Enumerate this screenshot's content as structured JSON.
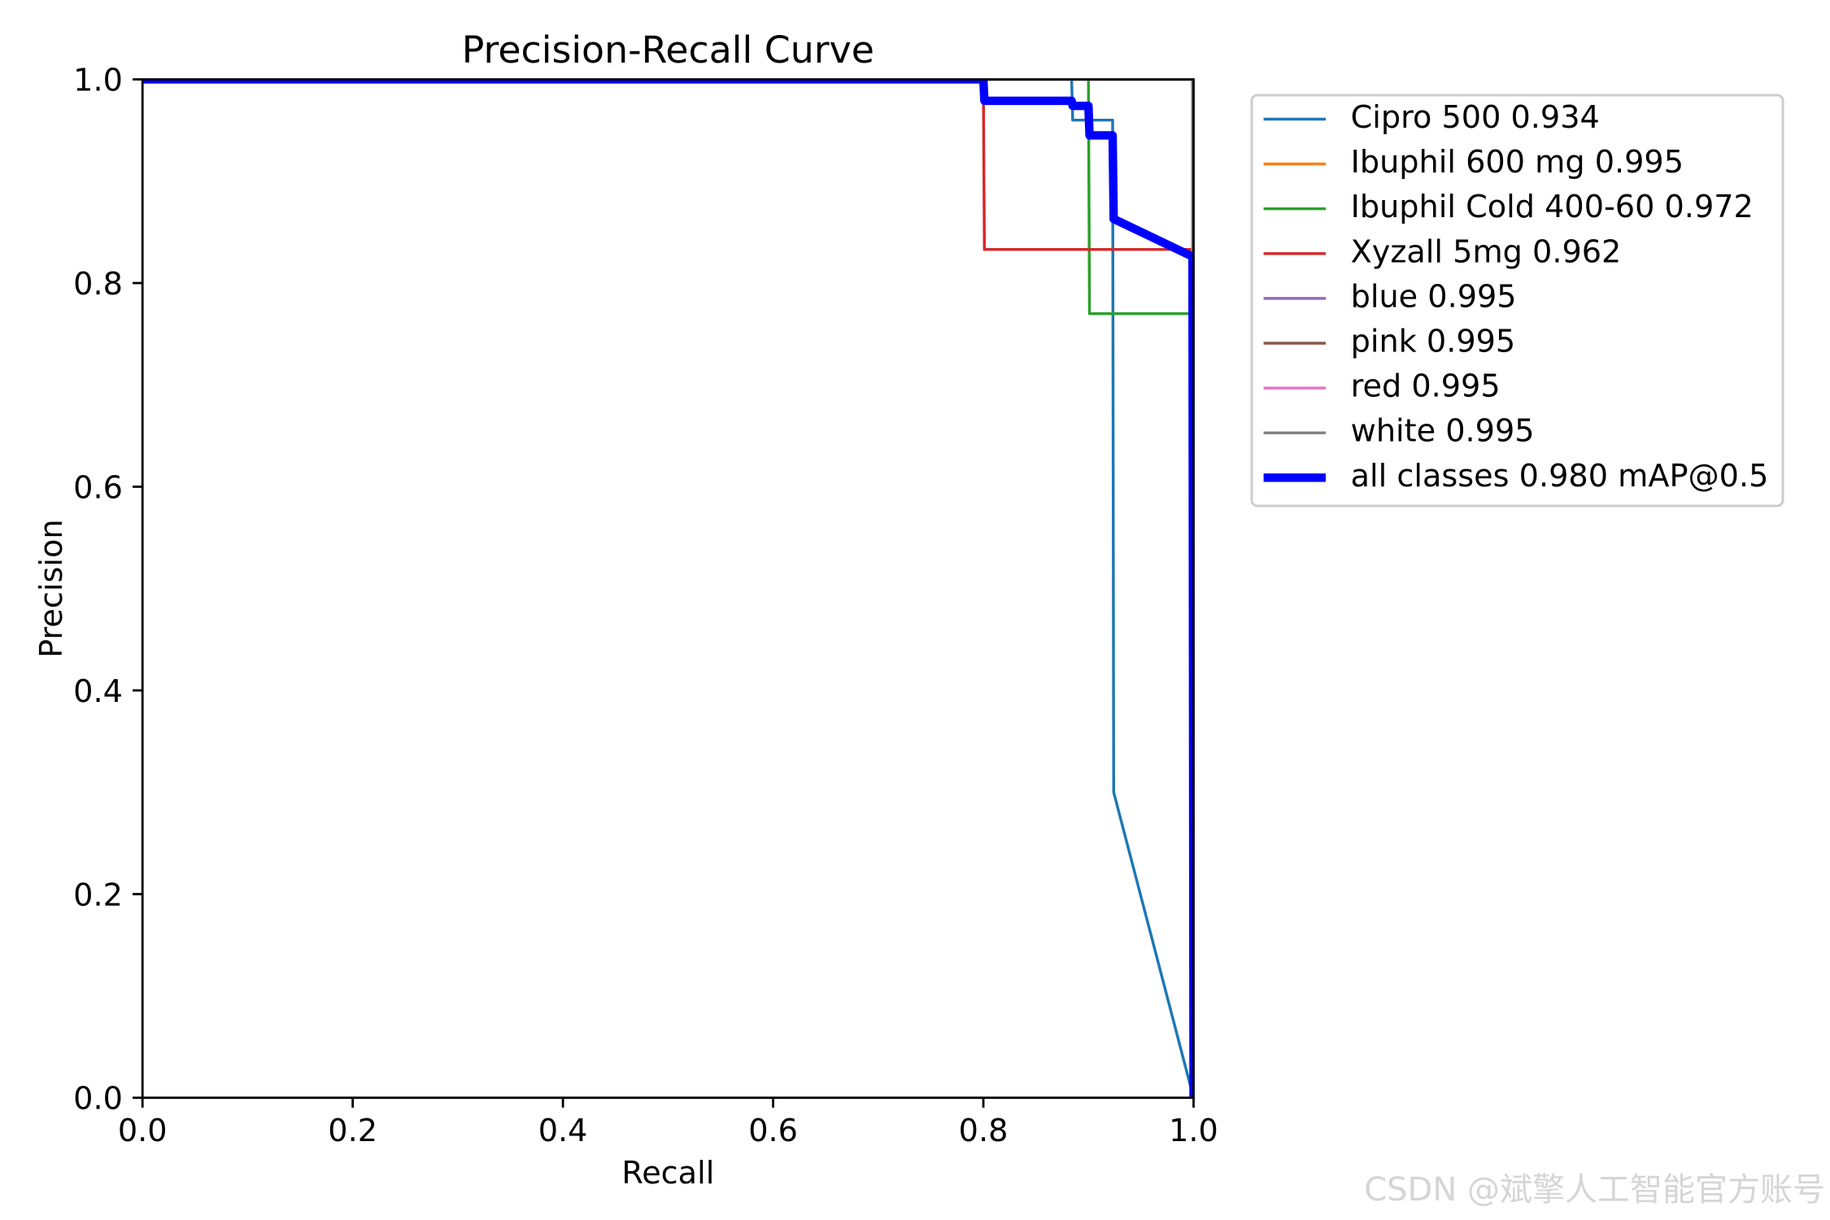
{
  "chart_data": {
    "type": "line",
    "title": "Precision-Recall Curve",
    "xlabel": "Recall",
    "ylabel": "Precision",
    "xlim": [
      0,
      1
    ],
    "ylim": [
      0,
      1
    ],
    "xticks": [
      0,
      0.2,
      0.4,
      0.6,
      0.8,
      1.0
    ],
    "xtick_labels": [
      "0.0",
      "0.2",
      "0.4",
      "0.6",
      "0.8",
      "1.0"
    ],
    "yticks": [
      0,
      0.2,
      0.4,
      0.6,
      0.8,
      1.0
    ],
    "ytick_labels": [
      "0.0",
      "0.2",
      "0.4",
      "0.6",
      "0.8",
      "1.0"
    ],
    "grid": false,
    "legend_position": "outside-upper-right",
    "series": [
      {
        "name": "Cipro 500 0.934",
        "color": "#1f77b4",
        "x": [
          0,
          0.884,
          0.885,
          0.923,
          0.924,
          1.0
        ],
        "y": [
          1.0,
          1.0,
          0.96,
          0.96,
          0.3,
          0.0
        ]
      },
      {
        "name": "Ibuphil 600 mg 0.995",
        "color": "#ff7f0e",
        "x": [
          0,
          0.999,
          1.0
        ],
        "y": [
          1.0,
          1.0,
          0.0
        ]
      },
      {
        "name": "Ibuphil Cold 400-60 0.972",
        "color": "#2ca02c",
        "x": [
          0,
          0.9,
          0.901,
          0.999,
          1.0
        ],
        "y": [
          1.0,
          1.0,
          0.77,
          0.77,
          0.0
        ]
      },
      {
        "name": "Xyzall 5mg 0.962",
        "color": "#d62728",
        "x": [
          0,
          0.8,
          0.801,
          0.999,
          1.0
        ],
        "y": [
          1.0,
          1.0,
          0.833,
          0.833,
          0.0
        ]
      },
      {
        "name": "blue 0.995",
        "color": "#9467bd",
        "x": [
          0,
          0.999,
          1.0
        ],
        "y": [
          1.0,
          1.0,
          0.0
        ]
      },
      {
        "name": "pink 0.995",
        "color": "#8c564b",
        "x": [
          0,
          0.999,
          1.0
        ],
        "y": [
          1.0,
          1.0,
          0.0
        ]
      },
      {
        "name": "red 0.995",
        "color": "#e377c2",
        "x": [
          0,
          0.999,
          1.0
        ],
        "y": [
          1.0,
          1.0,
          0.0
        ]
      },
      {
        "name": "white 0.995",
        "color": "#7f7f7f",
        "x": [
          0,
          0.999,
          1.0
        ],
        "y": [
          1.0,
          1.0,
          0.0
        ]
      },
      {
        "name": "all classes 0.980 mAP@0.5",
        "color": "#0000ff",
        "x": [
          0,
          0.8,
          0.801,
          0.884,
          0.885,
          0.9,
          0.901,
          0.923,
          0.924,
          0.999,
          1.0
        ],
        "y": [
          1.0,
          1.0,
          0.979,
          0.979,
          0.974,
          0.974,
          0.945,
          0.945,
          0.863,
          0.826,
          0.0
        ]
      }
    ]
  },
  "watermark": {
    "text": "CSDN @斌擎人工智能官方账号"
  }
}
